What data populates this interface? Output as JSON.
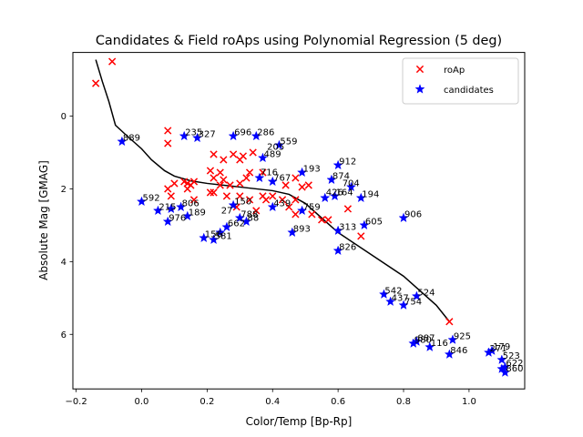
{
  "chart_data": {
    "type": "scatter",
    "title": "Candidates & Field roAps using Polynomial Regression (5 deg)",
    "xlabel": "Color/Temp [Bp-Rp]",
    "ylabel": "Absolute Mag [GMAG]",
    "xlim": [
      -0.21,
      1.17
    ],
    "ylim": [
      7.5,
      -1.75
    ],
    "y_inverted": true,
    "grid": false,
    "legend_position": "top-right",
    "x_ticks": [
      -0.2,
      0.0,
      0.2,
      0.4,
      0.6,
      0.8,
      1.0
    ],
    "x_tick_labels": [
      "−0.2",
      "0.0",
      "0.2",
      "0.4",
      "0.6",
      "0.8",
      "1.0"
    ],
    "y_ticks": [
      0,
      2,
      4,
      6
    ],
    "y_tick_labels": [
      "0",
      "2",
      "4",
      "6"
    ],
    "fit_line": {
      "color": "#000000",
      "x": [
        -0.14,
        -0.12,
        -0.1,
        -0.08,
        -0.05,
        0.0,
        0.03,
        0.07,
        0.1,
        0.15,
        0.2,
        0.3,
        0.4,
        0.45,
        0.5,
        0.55,
        0.6,
        0.7,
        0.8,
        0.9,
        0.94
      ],
      "y": [
        -1.55,
        -0.95,
        -0.4,
        0.25,
        0.5,
        0.9,
        1.2,
        1.5,
        1.65,
        1.78,
        1.85,
        1.95,
        2.05,
        2.15,
        2.4,
        2.8,
        3.2,
        3.8,
        4.4,
        5.2,
        5.65
      ]
    },
    "series": [
      {
        "name": "roAp",
        "marker": "x",
        "color": "#ff0000",
        "points": [
          [
            -0.09,
            -1.5
          ],
          [
            -0.14,
            -0.9
          ],
          [
            0.08,
            0.4
          ],
          [
            0.08,
            0.75
          ],
          [
            0.22,
            1.05
          ],
          [
            0.28,
            1.05
          ],
          [
            0.31,
            1.1
          ],
          [
            0.34,
            1.0
          ],
          [
            0.25,
            1.2
          ],
          [
            0.3,
            1.2
          ],
          [
            0.21,
            1.5
          ],
          [
            0.24,
            1.55
          ],
          [
            0.33,
            1.55
          ],
          [
            0.37,
            1.55
          ],
          [
            0.32,
            1.7
          ],
          [
            0.22,
            1.7
          ],
          [
            0.25,
            1.75
          ],
          [
            0.13,
            1.8
          ],
          [
            0.14,
            1.85
          ],
          [
            0.15,
            1.9
          ],
          [
            0.16,
            1.8
          ],
          [
            0.1,
            1.85
          ],
          [
            0.08,
            2.0
          ],
          [
            0.14,
            2.0
          ],
          [
            0.24,
            1.9
          ],
          [
            0.27,
            1.9
          ],
          [
            0.3,
            1.85
          ],
          [
            0.47,
            1.7
          ],
          [
            0.44,
            1.9
          ],
          [
            0.49,
            1.95
          ],
          [
            0.51,
            1.9
          ],
          [
            0.21,
            2.1
          ],
          [
            0.22,
            2.1
          ],
          [
            0.3,
            2.2
          ],
          [
            0.33,
            2.3
          ],
          [
            0.37,
            2.2
          ],
          [
            0.4,
            2.2
          ],
          [
            0.43,
            2.3
          ],
          [
            0.47,
            2.3
          ],
          [
            0.09,
            2.2
          ],
          [
            0.16,
            2.3
          ],
          [
            0.26,
            2.2
          ],
          [
            0.29,
            2.5
          ],
          [
            0.35,
            2.6
          ],
          [
            0.38,
            2.3
          ],
          [
            0.45,
            2.5
          ],
          [
            0.47,
            2.7
          ],
          [
            0.52,
            2.7
          ],
          [
            0.55,
            2.85
          ],
          [
            0.57,
            2.85
          ],
          [
            0.63,
            2.55
          ],
          [
            0.67,
            3.3
          ],
          [
            0.94,
            5.65
          ]
        ]
      },
      {
        "name": "candidates",
        "marker": "star",
        "color": "#0000ff",
        "points": [
          [
            -0.06,
            0.7
          ],
          [
            0.13,
            0.55
          ],
          [
            0.17,
            0.6
          ],
          [
            0.28,
            0.55
          ],
          [
            0.35,
            0.55
          ],
          [
            0.42,
            0.8
          ],
          [
            0.37,
            1.15
          ],
          [
            0.6,
            1.35
          ],
          [
            0.49,
            1.55
          ],
          [
            0.36,
            1.7
          ],
          [
            0.4,
            1.8
          ],
          [
            0.58,
            1.75
          ],
          [
            0.64,
            1.95
          ],
          [
            0.67,
            2.25
          ],
          [
            0.59,
            2.2
          ],
          [
            0.56,
            2.25
          ],
          [
            0.0,
            2.35
          ],
          [
            0.05,
            2.6
          ],
          [
            0.09,
            2.55
          ],
          [
            0.12,
            2.5
          ],
          [
            0.14,
            2.75
          ],
          [
            0.08,
            2.9
          ],
          [
            0.28,
            2.45
          ],
          [
            0.3,
            2.8
          ],
          [
            0.32,
            2.9
          ],
          [
            0.26,
            3.05
          ],
          [
            0.24,
            3.2
          ],
          [
            0.22,
            3.4
          ],
          [
            0.19,
            3.35
          ],
          [
            0.4,
            2.5
          ],
          [
            0.49,
            2.6
          ],
          [
            0.46,
            3.2
          ],
          [
            0.6,
            3.15
          ],
          [
            0.68,
            3.0
          ],
          [
            0.8,
            2.8
          ],
          [
            0.6,
            3.7
          ],
          [
            0.74,
            4.9
          ],
          [
            0.76,
            5.1
          ],
          [
            0.8,
            5.2
          ],
          [
            0.84,
            4.95
          ],
          [
            0.83,
            6.25
          ],
          [
            0.84,
            6.2
          ],
          [
            0.88,
            6.35
          ],
          [
            0.94,
            6.55
          ],
          [
            0.95,
            6.15
          ],
          [
            1.06,
            6.5
          ],
          [
            1.07,
            6.45
          ],
          [
            1.1,
            6.7
          ],
          [
            1.11,
            6.9
          ],
          [
            1.1,
            6.95
          ],
          [
            1.11,
            7.05
          ]
        ]
      }
    ],
    "annotations": [
      {
        "text": "889",
        "x": -0.06,
        "y": 0.7
      },
      {
        "text": "235",
        "x": 0.13,
        "y": 0.55
      },
      {
        "text": "327",
        "x": 0.17,
        "y": 0.6
      },
      {
        "text": "696",
        "x": 0.28,
        "y": 0.55
      },
      {
        "text": "286",
        "x": 0.35,
        "y": 0.55
      },
      {
        "text": "559",
        "x": 0.42,
        "y": 0.8
      },
      {
        "text": "205",
        "x": 0.38,
        "y": 0.95
      },
      {
        "text": "489",
        "x": 0.37,
        "y": 1.15
      },
      {
        "text": "912",
        "x": 0.6,
        "y": 1.35
      },
      {
        "text": "193",
        "x": 0.49,
        "y": 1.55
      },
      {
        "text": "716",
        "x": 0.36,
        "y": 1.65
      },
      {
        "text": "767",
        "x": 0.4,
        "y": 1.8
      },
      {
        "text": "874",
        "x": 0.58,
        "y": 1.75
      },
      {
        "text": "704",
        "x": 0.61,
        "y": 1.95
      },
      {
        "text": "426",
        "x": 0.56,
        "y": 2.2
      },
      {
        "text": "164",
        "x": 0.59,
        "y": 2.2
      },
      {
        "text": "194",
        "x": 0.67,
        "y": 2.25
      },
      {
        "text": "592",
        "x": 0.0,
        "y": 2.35
      },
      {
        "text": "215",
        "x": 0.05,
        "y": 2.6
      },
      {
        "text": "806",
        "x": 0.12,
        "y": 2.5
      },
      {
        "text": "189",
        "x": 0.14,
        "y": 2.75
      },
      {
        "text": "976",
        "x": 0.08,
        "y": 2.9
      },
      {
        "text": "150",
        "x": 0.28,
        "y": 2.45
      },
      {
        "text": "27",
        "x": 0.24,
        "y": 2.7
      },
      {
        "text": "788",
        "x": 0.3,
        "y": 2.8
      },
      {
        "text": "88",
        "x": 0.32,
        "y": 2.9
      },
      {
        "text": "662",
        "x": 0.26,
        "y": 3.05
      },
      {
        "text": "156",
        "x": 0.19,
        "y": 3.35
      },
      {
        "text": "581",
        "x": 0.22,
        "y": 3.4
      },
      {
        "text": "439",
        "x": 0.4,
        "y": 2.5
      },
      {
        "text": "759",
        "x": 0.49,
        "y": 2.6
      },
      {
        "text": "893",
        "x": 0.46,
        "y": 3.2
      },
      {
        "text": "313",
        "x": 0.6,
        "y": 3.15
      },
      {
        "text": "605",
        "x": 0.68,
        "y": 3.0
      },
      {
        "text": "906",
        "x": 0.8,
        "y": 2.8
      },
      {
        "text": "826",
        "x": 0.6,
        "y": 3.7
      },
      {
        "text": "542",
        "x": 0.74,
        "y": 4.9
      },
      {
        "text": "437",
        "x": 0.76,
        "y": 5.1
      },
      {
        "text": "754",
        "x": 0.8,
        "y": 5.2
      },
      {
        "text": "524",
        "x": 0.84,
        "y": 4.95
      },
      {
        "text": "980",
        "x": 0.83,
        "y": 6.25
      },
      {
        "text": "887",
        "x": 0.84,
        "y": 6.2
      },
      {
        "text": "116",
        "x": 0.88,
        "y": 6.35
      },
      {
        "text": "846",
        "x": 0.94,
        "y": 6.55
      },
      {
        "text": "925",
        "x": 0.95,
        "y": 6.15
      },
      {
        "text": "271",
        "x": 1.06,
        "y": 6.5
      },
      {
        "text": "179",
        "x": 1.07,
        "y": 6.45
      },
      {
        "text": "523",
        "x": 1.1,
        "y": 6.7
      },
      {
        "text": "622",
        "x": 1.11,
        "y": 6.9
      },
      {
        "text": "860",
        "x": 1.11,
        "y": 7.05
      }
    ]
  }
}
